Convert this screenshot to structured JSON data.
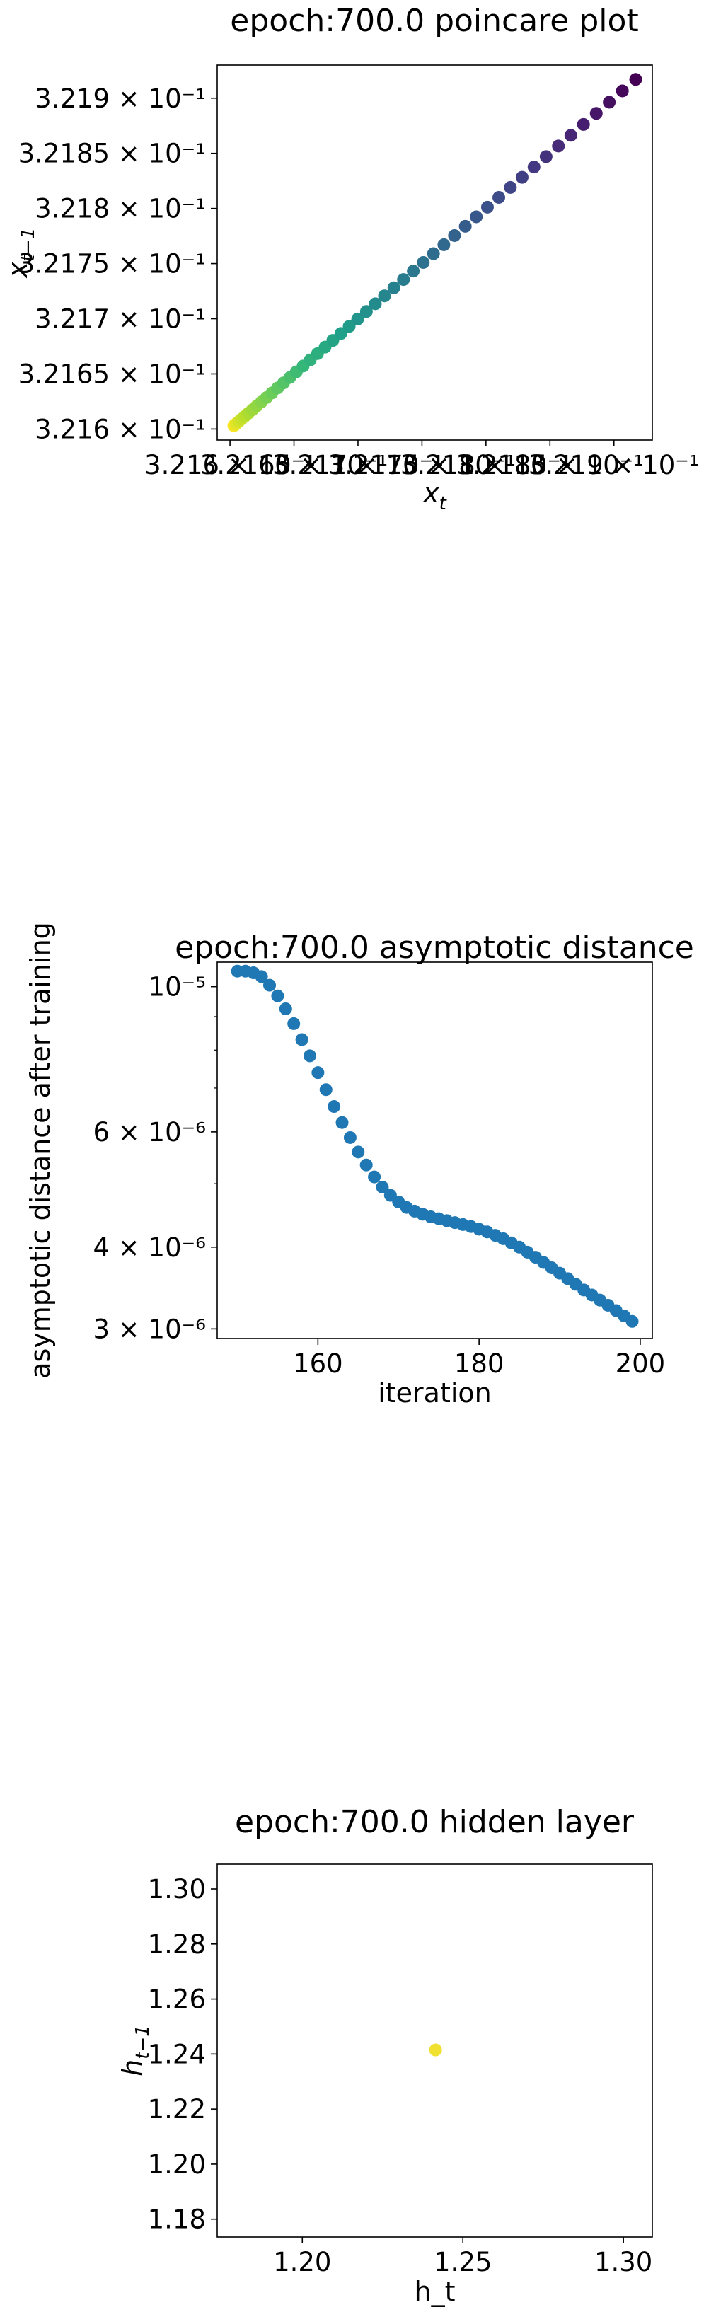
{
  "chart_data": [
    {
      "type": "scatter",
      "title": "epoch:700.0 poincare plot",
      "xlabel": "x_t",
      "ylabel": "x_{t-1}",
      "xlim": [
        0.32159,
        0.32193
      ],
      "ylim": [
        0.32159,
        0.32193
      ],
      "xticks": [
        0.3216,
        0.32165,
        0.3217,
        0.32175,
        0.3218,
        0.32185,
        0.3219
      ],
      "xtick_labels": [
        "3.216 × 10⁻¹",
        "3.2165 × 10⁻¹",
        "3.217 × 10⁻¹",
        "3.2175 × 10⁻¹",
        "3.218 × 10⁻¹",
        "3.2185 × 10⁻¹",
        "3.219 × 10⁻¹"
      ],
      "yticks": [
        0.3216,
        0.32165,
        0.3217,
        0.32175,
        0.3218,
        0.32185,
        0.3219
      ],
      "ytick_labels": [
        "3.216 × 10⁻¹",
        "3.2165 × 10⁻¹",
        "3.217 × 10⁻¹",
        "3.2175 × 10⁻¹",
        "3.218 × 10⁻¹",
        "3.2185 × 10⁻¹",
        "3.219 × 10⁻¹"
      ],
      "colormap": "viridis",
      "points": {
        "start": 0.321603,
        "end": 0.321917,
        "count": 49,
        "spacing_exponent": 1.6
      },
      "grid": false
    },
    {
      "type": "scatter",
      "title": "epoch:700.0 asymptotic distance",
      "xlabel": "iteration",
      "ylabel": "asymptotic distance after training",
      "yscale": "log",
      "xlim": [
        147.5,
        201.5
      ],
      "ylim": [
        2.9e-06,
        1.09e-05
      ],
      "xticks": [
        160,
        180,
        200
      ],
      "xtick_labels": [
        "160",
        "180",
        "200"
      ],
      "yticks": [
        3e-06,
        4e-06,
        6e-06,
        1e-05
      ],
      "ytick_labels": [
        "3 × 10⁻⁶",
        "4 × 10⁻⁶",
        "6 × 10⁻⁶",
        "10⁻⁵"
      ],
      "color": "#1f77b4",
      "x": [
        150,
        151,
        152,
        153,
        154,
        155,
        156,
        157,
        158,
        159,
        160,
        161,
        162,
        163,
        164,
        165,
        166,
        167,
        168,
        169,
        170,
        171,
        172,
        173,
        174,
        175,
        176,
        177,
        178,
        179,
        180,
        181,
        182,
        183,
        184,
        185,
        186,
        187,
        188,
        189,
        190,
        191,
        192,
        193,
        194,
        195,
        196,
        197,
        198,
        199
      ],
      "y": [
        1.056e-05,
        1.056e-05,
        1.05e-05,
        1.036e-05,
        1.005e-05,
        9.68e-06,
        9.25e-06,
        8.78e-06,
        8.3e-06,
        7.84e-06,
        7.39e-06,
        6.96e-06,
        6.56e-06,
        6.2e-06,
        5.88e-06,
        5.59e-06,
        5.34e-06,
        5.12e-06,
        4.94e-06,
        4.8e-06,
        4.69e-06,
        4.6e-06,
        4.54e-06,
        4.49e-06,
        4.45e-06,
        4.42e-06,
        4.39e-06,
        4.36e-06,
        4.33e-06,
        4.3e-06,
        4.26e-06,
        4.22e-06,
        4.17e-06,
        4.12e-06,
        4.06e-06,
        4e-06,
        3.93e-06,
        3.86e-06,
        3.79e-06,
        3.72e-06,
        3.65e-06,
        3.58e-06,
        3.51e-06,
        3.44e-06,
        3.38e-06,
        3.32e-06,
        3.26e-06,
        3.2e-06,
        3.14e-06,
        3.08e-06
      ],
      "grid": false
    },
    {
      "type": "scatter",
      "title": "epoch:700.0 hidden layer",
      "xlabel": "h_t",
      "ylabel": "h_{t-1}",
      "xlim": [
        1.1735,
        1.309
      ],
      "ylim": [
        1.1735,
        1.309
      ],
      "xticks": [
        1.2,
        1.25,
        1.3
      ],
      "xtick_labels": [
        "1.20",
        "1.25",
        "1.30"
      ],
      "yticks": [
        1.18,
        1.2,
        1.22,
        1.24,
        1.26,
        1.28,
        1.3
      ],
      "ytick_labels": [
        "1.18",
        "1.20",
        "1.22",
        "1.24",
        "1.26",
        "1.28",
        "1.30"
      ],
      "color": "#f0e030",
      "x": [
        1.2415
      ],
      "y": [
        1.2415
      ],
      "grid": false
    }
  ]
}
